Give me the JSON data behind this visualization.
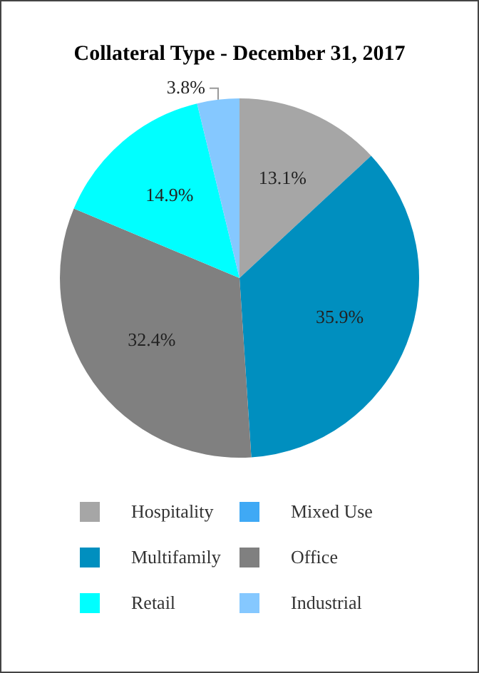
{
  "chart_data": {
    "type": "pie",
    "title": "Collateral Type - December 31, 2017",
    "categories": [
      "Hospitality",
      "Mixed Use",
      "Multifamily",
      "Office",
      "Retail",
      "Industrial"
    ],
    "values": [
      13.1,
      0,
      35.9,
      32.4,
      14.9,
      3.8
    ],
    "colors": [
      "#a6a6a6",
      "#3fa9f5",
      "#008fbf",
      "#808080",
      "#00ffff",
      "#85c8ff"
    ],
    "value_labels": [
      "13.1%",
      null,
      "35.9%",
      "32.4%",
      "14.9%",
      "3.8%"
    ],
    "legend": "bottom"
  }
}
